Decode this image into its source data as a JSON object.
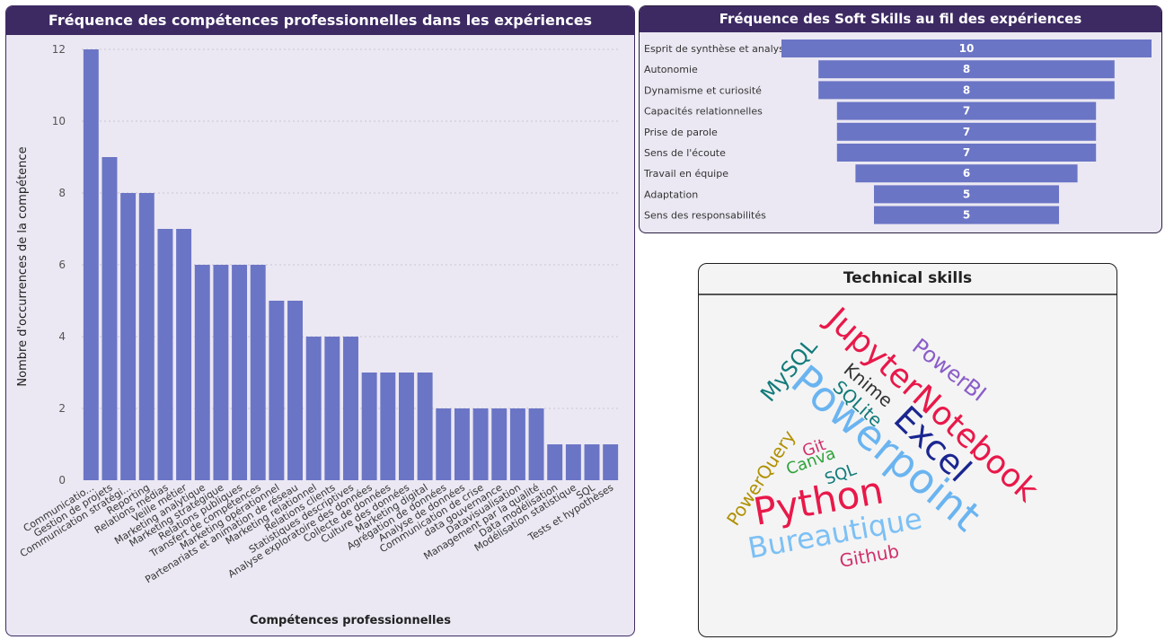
{
  "main_chart": {
    "title": "Fréquence des compétences professionnelles dans les expériences",
    "ylabel": "Nombre d'occurrences de la compétence",
    "xlabel": "Compétences professionnelles"
  },
  "soft_chart": {
    "title": "Fréquence des Soft Skills au fil des expériences"
  },
  "tech_panel": {
    "title": "Technical skills"
  },
  "colors": {
    "bar": "#6b75c5",
    "header_bg": "#3d2a63",
    "panel_bg": "#ebe8f3"
  },
  "chart_data": [
    {
      "type": "bar",
      "title": "Fréquence des compétences professionnelles dans les expériences",
      "xlabel": "Compétences professionnelles",
      "ylabel": "Nombre d'occurrences de la compétence",
      "ylim": [
        0,
        12
      ],
      "yticks": [
        0,
        2,
        4,
        6,
        8,
        10,
        12
      ],
      "grid": true,
      "categories": [
        "Communicatio...",
        "Gestion de projets",
        "Communication stratégi...",
        "Reporting",
        "Relations médias",
        "Veille métier",
        "Marketing analytique",
        "Marketing stratégique",
        "Relations publiques",
        "Transfert de compétences",
        "Marketing opérationnel",
        "Partenariats et animation de réseau",
        "Marketing relationnel",
        "Relations clients",
        "Statistiques descriptives",
        "Analyse exploratoire des données",
        "Collecte de données",
        "Culture des données",
        "Marketing digital",
        "Agrégation de données",
        "Analyse de données",
        "Communication de crise",
        "data gouvernance",
        "Datavisualisation",
        "Management par la qualité",
        "Data modélisation",
        "Modélisation statistique",
        "SQL",
        "Tests et hypothèses"
      ],
      "values": [
        12,
        9,
        8,
        8,
        7,
        7,
        6,
        6,
        6,
        6,
        5,
        5,
        4,
        4,
        4,
        3,
        3,
        3,
        3,
        2,
        2,
        2,
        2,
        2,
        2,
        1,
        1,
        1,
        1
      ]
    },
    {
      "type": "bar",
      "orientation": "funnel",
      "title": "Fréquence des Soft Skills au fil des expériences",
      "categories": [
        "Esprit de synthèse et analyse",
        "Autonomie",
        "Dynamisme et curiosité",
        "Capacités relationnelles",
        "Prise de parole",
        "Sens de l'écoute",
        "Travail en équipe",
        "Adaptation",
        "Sens des responsabilités"
      ],
      "values": [
        10,
        8,
        8,
        7,
        7,
        7,
        6,
        5,
        5
      ]
    }
  ],
  "word_cloud": {
    "title": "Technical skills",
    "words": [
      {
        "text": "JupyterNotebook",
        "color": "#e8194a"
      },
      {
        "text": "PowerBI",
        "color": "#8a5cc8"
      },
      {
        "text": "MySQL",
        "color": "#127a7a"
      },
      {
        "text": "Knime",
        "color": "#333333"
      },
      {
        "text": "SQLite",
        "color": "#127a7a"
      },
      {
        "text": "Powerpoint",
        "color": "#6ab4f0"
      },
      {
        "text": "Excel",
        "color": "#1a2690"
      },
      {
        "text": "PowerQuery",
        "color": "#b09000"
      },
      {
        "text": "Git",
        "color": "#d0306c"
      },
      {
        "text": "Canva",
        "color": "#2ea33a"
      },
      {
        "text": "SQL",
        "color": "#127a7a"
      },
      {
        "text": "Python",
        "color": "#e8194a"
      },
      {
        "text": "Bureautique",
        "color": "#7cc0f5"
      },
      {
        "text": "Github",
        "color": "#d0306c"
      }
    ]
  }
}
